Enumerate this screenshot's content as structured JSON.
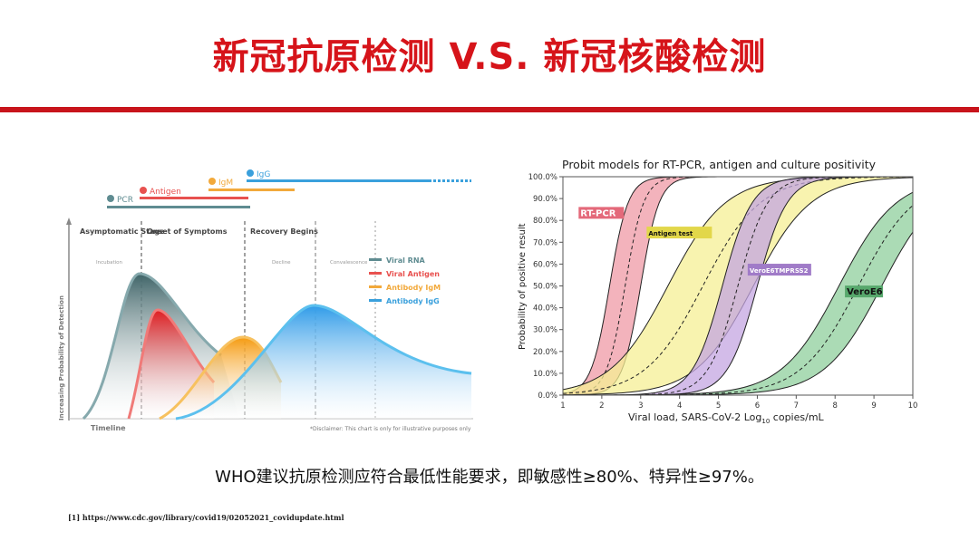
{
  "slide": {
    "title": "新冠抗原检测 V.S. 新冠核酸检测",
    "note": "WHO建议抗原检测应符合最低性能要求，即敏感性≥80%、特异性≥97%。",
    "reference": "[1] https://www.cdc.gov/library/covid19/02052021_covidupdate.html",
    "colors": {
      "title": "#d6141a",
      "rule": "#c8141b"
    }
  },
  "chart_data": [
    {
      "type": "area",
      "title": "",
      "xlabel": "Timeline",
      "ylabel": "Increasing Probability of Detection",
      "detection_windows": [
        {
          "label": "PCR",
          "color": "#5f8c91"
        },
        {
          "label": "Antigen",
          "color": "#e8514f"
        },
        {
          "label": "IgM",
          "color": "#f2a93b"
        },
        {
          "label": "IgG",
          "color": "#3aa0dc"
        }
      ],
      "stages": [
        "Asymptomatic Stage",
        "Onset of Symptoms",
        "Recovery Begins"
      ],
      "phases": [
        "Incubation",
        "Decline",
        "Convalescence"
      ],
      "series": [
        {
          "name": "Viral RNA",
          "color": "#5f8c91"
        },
        {
          "name": "Viral Antigen",
          "color": "#e8514f"
        },
        {
          "name": "Antibody IgM",
          "color": "#f2a93b"
        },
        {
          "name": "Antibody IgG",
          "color": "#3aa0dc"
        }
      ],
      "disclaimer": "*Disclaimer: This chart is only for illustrative purposes only"
    },
    {
      "type": "line",
      "title": "Probit models for RT-PCR, antigen and culture positivity",
      "xlabel": "Viral load, SARS-CoV-2 Log",
      "xlabel_sub": "10",
      "xlabel_suffix": " copies/mL",
      "ylabel": "Probability of positive result",
      "xlim": [
        1,
        10
      ],
      "ylim": [
        0,
        100
      ],
      "x_ticks": [
        1,
        2,
        3,
        4,
        5,
        6,
        7,
        8,
        9,
        10
      ],
      "y_ticks": [
        "0.0%",
        "10.0%",
        "20.0%",
        "30.0%",
        "40.0%",
        "50.0%",
        "60.0%",
        "70.0%",
        "80.0%",
        "90.0%",
        "100.0%"
      ],
      "series": [
        {
          "name": "RT-PCR",
          "color": "#e4697a",
          "fill": "#ef9aa5",
          "center": 2.6,
          "lo": 2.2,
          "hi": 3.0,
          "k": 4.2,
          "label_color": "#ffffff"
        },
        {
          "name": "Antigen test",
          "color": "#e2d74a",
          "fill": "#f5ef94",
          "center": 4.6,
          "lo": 3.7,
          "hi": 5.9,
          "k": 1.35,
          "label_color": "#111111"
        },
        {
          "name": "VeroE6TMPRSS2",
          "color": "#a07bc8",
          "fill": "#c4a6e2",
          "center": 5.5,
          "lo": 5.1,
          "hi": 6.0,
          "k": 2.6,
          "label_color": "#ffffff"
        },
        {
          "name": "VeroE6",
          "color": "#57a86c",
          "fill": "#8fcf9c",
          "center": 8.6,
          "lo": 8.1,
          "hi": 9.2,
          "k": 1.35,
          "label_color": "#111111"
        }
      ]
    }
  ]
}
